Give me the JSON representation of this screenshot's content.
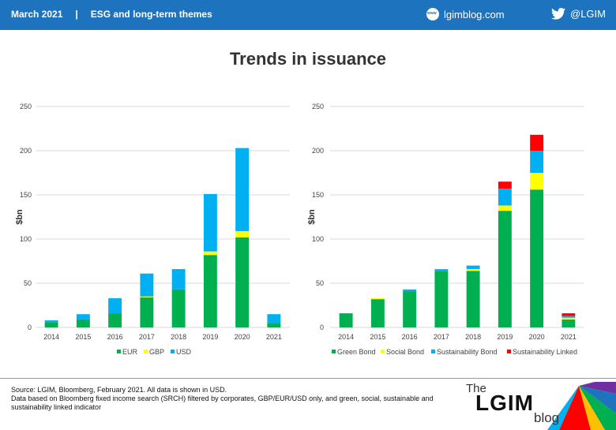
{
  "header": {
    "date": "March 2021",
    "separator": "|",
    "section": "ESG and long-term themes",
    "site": "lgimblog.com",
    "twitter": "@LGIM"
  },
  "title": "Trends in issuance",
  "chart_data": [
    {
      "type": "bar",
      "stacked": true,
      "categories": [
        "2014",
        "2015",
        "2016",
        "2017",
        "2018",
        "2019",
        "2020",
        "2021"
      ],
      "series": [
        {
          "name": "EUR",
          "color": "#00b050",
          "values": [
            6,
            9,
            16,
            34,
            43,
            82,
            102,
            5
          ]
        },
        {
          "name": "GBP",
          "color": "#ffff00",
          "values": [
            0,
            0,
            0,
            1,
            0,
            4,
            7,
            0
          ]
        },
        {
          "name": "USD",
          "color": "#00b0f0",
          "values": [
            2,
            6,
            17,
            26,
            23,
            65,
            94,
            10
          ]
        }
      ],
      "ylabel": "$bn",
      "ylim": [
        0,
        250
      ],
      "yticks": [
        "0",
        "50",
        "100",
        "150",
        "200",
        "250"
      ],
      "grid": true,
      "legend": "bottom"
    },
    {
      "type": "bar",
      "stacked": true,
      "categories": [
        "2014",
        "2015",
        "2016",
        "2017",
        "2018",
        "2019",
        "2020",
        "2021"
      ],
      "series": [
        {
          "name": "Green Bond",
          "color": "#00b050",
          "values": [
            16,
            32,
            41,
            64,
            64,
            132,
            156,
            9
          ]
        },
        {
          "name": "Social Bond",
          "color": "#ffff00",
          "values": [
            0,
            1,
            0,
            0,
            2,
            6,
            19,
            2
          ]
        },
        {
          "name": "Sustainability Bond",
          "color": "#00b0f0",
          "values": [
            0,
            0,
            2,
            2,
            4,
            19,
            25,
            2
          ]
        },
        {
          "name": "Sustainability Linked",
          "color": "#ff0000",
          "values": [
            0,
            0,
            0,
            0,
            0,
            8,
            18,
            3
          ]
        }
      ],
      "ylabel": "$bn",
      "ylim": [
        0,
        250
      ],
      "yticks": [
        "0",
        "50",
        "100",
        "150",
        "200",
        "250"
      ],
      "grid": true,
      "legend": "bottom"
    }
  ],
  "source": {
    "line1": "Source: LGIM, Bloomberg, February 2021. All data is shown in USD.",
    "line2": "Data based on Bloomberg fixed income search (SRCH) filtered by corporates, GBP/EUR/USD only, and green, social, sustainable and sustainability linked indicator"
  },
  "logo": {
    "the": "The",
    "name": "LGIM",
    "blog": "blog"
  }
}
